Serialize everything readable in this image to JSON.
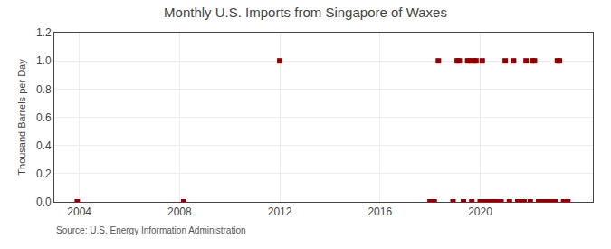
{
  "chart_data": {
    "type": "scatter",
    "title": "Monthly U.S. Imports from Singapore of Waxes",
    "ylabel": "Thousand Barrels per Day",
    "annotations": [
      "Source: U.S. Energy Information Administration"
    ],
    "x": [
      2003.917,
      2008.167,
      2012.0,
      2018.0,
      2018.167,
      2018.333,
      2018.917,
      2019.083,
      2019.167,
      2019.333,
      2019.5,
      2019.583,
      2019.667,
      2019.75,
      2019.833,
      2020.0,
      2020.083,
      2020.167,
      2020.333,
      2020.5,
      2020.667,
      2020.833,
      2021.0,
      2021.167,
      2021.333,
      2021.5,
      2021.583,
      2021.667,
      2021.75,
      2021.833,
      2022.0,
      2022.083,
      2022.167,
      2022.333,
      2022.417,
      2022.5,
      2022.583,
      2022.667,
      2022.75,
      2022.833,
      2022.917,
      2023.0,
      2023.083,
      2023.167,
      2023.333,
      2023.5
    ],
    "values": [
      0.0,
      0.0,
      1.0,
      0.0,
      0.0,
      1.0,
      0.0,
      1.0,
      1.0,
      0.0,
      1.0,
      1.0,
      0.0,
      1.0,
      1.0,
      0.0,
      1.0,
      0.0,
      0.0,
      0.0,
      0.0,
      0.0,
      1.0,
      0.0,
      1.0,
      0.0,
      0.0,
      0.0,
      0.0,
      1.0,
      0.0,
      1.0,
      1.0,
      0.0,
      0.0,
      0.0,
      0.0,
      0.0,
      0.0,
      0.0,
      0.0,
      0.0,
      1.0,
      1.0,
      0.0,
      0.0
    ],
    "color": "#8b0000",
    "marker": "square",
    "xlim": [
      2003.0,
      2024.5
    ],
    "xticks": [
      2004,
      2008,
      2012,
      2016,
      2020
    ],
    "ylim": [
      0.0,
      1.2
    ],
    "yticks": [
      {
        "value": 0.0,
        "label": "0.0"
      },
      0.2,
      0.4,
      0.6,
      0.8,
      {
        "value": 1.0,
        "label": "1.0"
      },
      1.2
    ],
    "grid": true
  }
}
